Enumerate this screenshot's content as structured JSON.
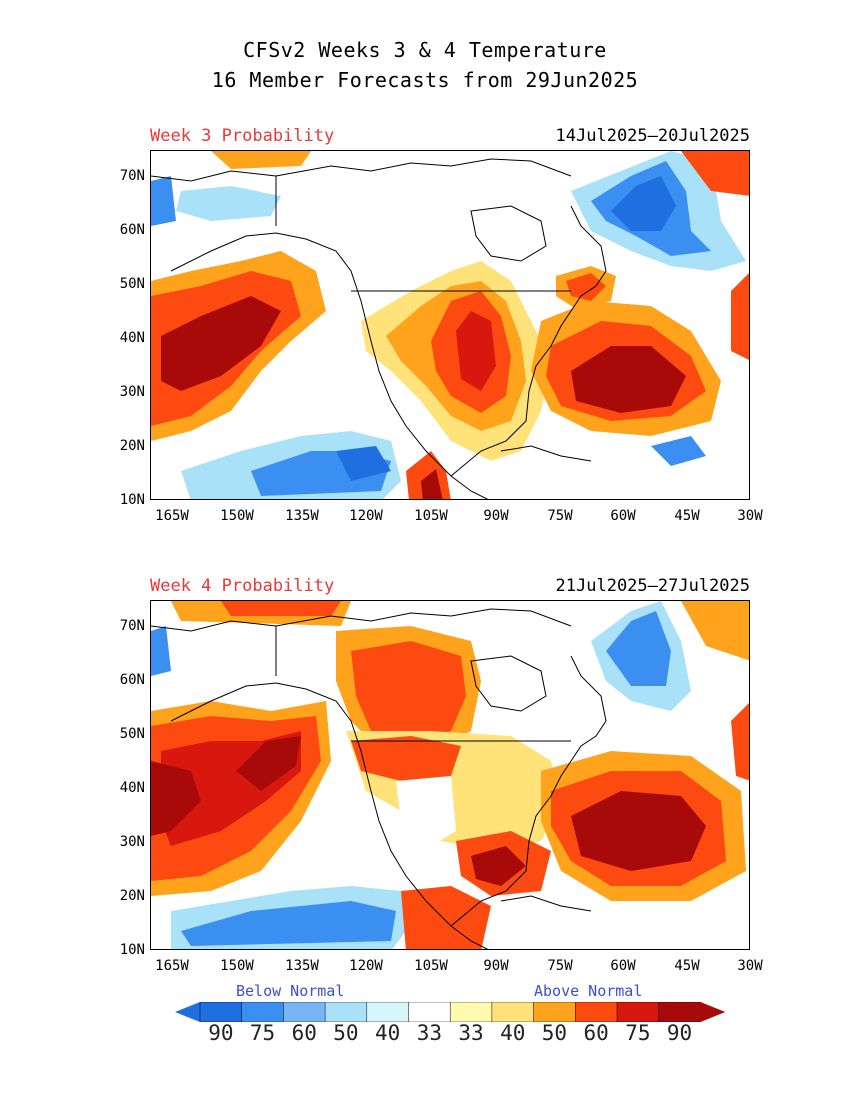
{
  "header": {
    "title_line1": "CFSv2 Weeks 3 & 4 Temperature",
    "title_line2": "16 Member Forecasts from 29Jun2025"
  },
  "panels": [
    {
      "label": "Week 3 Probability",
      "dates": "14Jul2025—20Jul2025"
    },
    {
      "label": "Week 4 Probability",
      "dates": "21Jul2025—27Jul2025"
    }
  ],
  "axes": {
    "lat_labels": [
      "70N",
      "60N",
      "50N",
      "40N",
      "30N",
      "20N",
      "10N"
    ],
    "lon_labels": [
      "165W",
      "150W",
      "135W",
      "120W",
      "105W",
      "90W",
      "75W",
      "60W",
      "45W",
      "30W"
    ]
  },
  "legend": {
    "below_label": "Below Normal",
    "above_label": "Above Normal",
    "values": [
      "90",
      "75",
      "60",
      "50",
      "40",
      "33",
      "33",
      "40",
      "50",
      "60",
      "75",
      "90"
    ],
    "colors": [
      "#1f6fe0",
      "#3a8ff0",
      "#78b5f5",
      "#a9e1f8",
      "#d6f6fa",
      "#ffffff",
      "#fffab0",
      "#ffe27a",
      "#ffa21c",
      "#fc4a10",
      "#d8180e",
      "#a80a0a"
    ]
  },
  "palette": {
    "title_red": "#e8393a",
    "legend_blue": "#3a4fd8",
    "map_lines": "#000000",
    "background": "#ffffff"
  }
}
